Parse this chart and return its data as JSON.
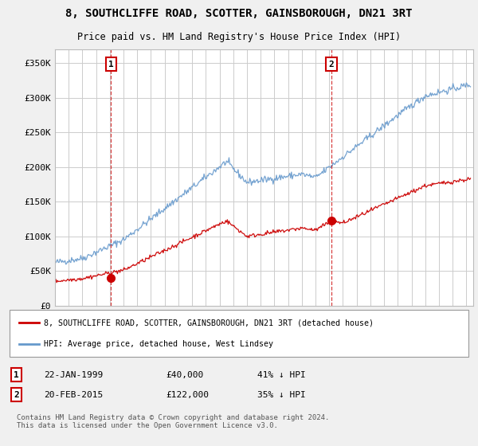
{
  "title": "8, SOUTHCLIFFE ROAD, SCOTTER, GAINSBOROUGH, DN21 3RT",
  "subtitle": "Price paid vs. HM Land Registry's House Price Index (HPI)",
  "ylim": [
    0,
    370000
  ],
  "yticks": [
    0,
    50000,
    100000,
    150000,
    200000,
    250000,
    300000,
    350000
  ],
  "ytick_labels": [
    "£0",
    "£50K",
    "£100K",
    "£150K",
    "£200K",
    "£250K",
    "£300K",
    "£350K"
  ],
  "legend_line1": "8, SOUTHCLIFFE ROAD, SCOTTER, GAINSBOROUGH, DN21 3RT (detached house)",
  "legend_line2": "HPI: Average price, detached house, West Lindsey",
  "sale1_date": "22-JAN-1999",
  "sale1_price": "£40,000",
  "sale1_hpi": "41% ↓ HPI",
  "sale2_date": "20-FEB-2015",
  "sale2_price": "£122,000",
  "sale2_hpi": "35% ↓ HPI",
  "footer": "Contains HM Land Registry data © Crown copyright and database right 2024.\nThis data is licensed under the Open Government Licence v3.0.",
  "red_color": "#cc0000",
  "blue_color": "#6699cc",
  "dashed_color": "#cc0000",
  "background_color": "#f0f0f0",
  "plot_bg": "#ffffff",
  "grid_color": "#cccccc"
}
